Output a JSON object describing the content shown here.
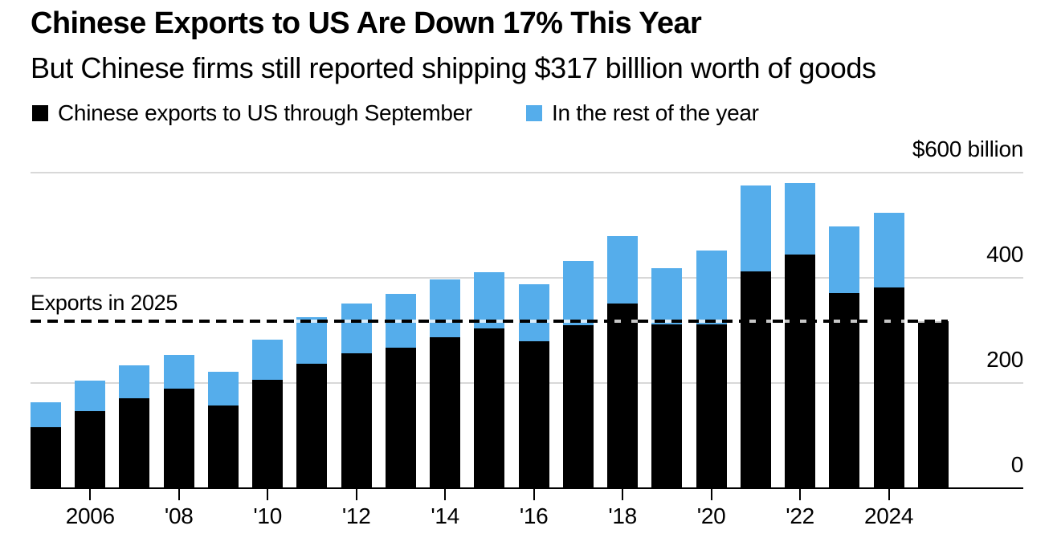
{
  "header": {
    "title": "Chinese Exports to US Are Down 17% This Year",
    "subtitle": "But Chinese firms still reported shipping $317 billlion worth of goods"
  },
  "legend": {
    "items": [
      {
        "label": "Chinese exports to US through September",
        "color": "#000000"
      },
      {
        "label": "In the rest of the year",
        "color": "#55ADEB"
      }
    ]
  },
  "chart_data": {
    "type": "bar",
    "stacked": true,
    "title": "Chinese Exports to US Are Down 17% This Year",
    "subtitle": "But Chinese firms still reported shipping $317 billlion worth of goods",
    "unit": "$ billion",
    "ylim": [
      0,
      600
    ],
    "grid": true,
    "y_gridlines": [
      200,
      400,
      600
    ],
    "y_axis_labels": [
      {
        "value": 600,
        "label": "$600 billion"
      },
      {
        "value": 400,
        "label": "400"
      },
      {
        "value": 200,
        "label": "200"
      },
      {
        "value": 0,
        "label": "0"
      }
    ],
    "legend_position": "top",
    "categories": [
      2005,
      2006,
      2007,
      2008,
      2009,
      2010,
      2011,
      2012,
      2013,
      2014,
      2015,
      2016,
      2017,
      2018,
      2019,
      2020,
      2021,
      2022,
      2023,
      2024,
      2025
    ],
    "series": [
      {
        "name": "Chinese exports to US through September",
        "color": "#000000",
        "values": [
          116,
          146,
          171,
          189,
          158,
          206,
          236,
          257,
          267,
          287,
          304,
          280,
          310,
          351,
          311,
          312,
          412,
          445,
          371,
          381,
          317
        ]
      },
      {
        "name": "In the rest of the year",
        "color": "#55ADEB",
        "values": [
          47,
          58,
          62,
          64,
          63,
          77,
          89,
          94,
          102,
          110,
          106,
          108,
          122,
          128,
          108,
          140,
          164,
          135,
          127,
          143,
          0
        ]
      }
    ],
    "totals": [
      163,
      204,
      233,
      253,
      221,
      283,
      325,
      351,
      369,
      397,
      410,
      388,
      432,
      479,
      419,
      452,
      576,
      580,
      498,
      524,
      317
    ],
    "annotation_line": {
      "label": "Exports in 2025",
      "value": 317,
      "style": "dashed"
    },
    "x_ticks": [
      {
        "year": 2006,
        "label": "2006"
      },
      {
        "year": 2008,
        "label": "'08"
      },
      {
        "year": 2010,
        "label": "'10"
      },
      {
        "year": 2012,
        "label": "'12"
      },
      {
        "year": 2014,
        "label": "'14"
      },
      {
        "year": 2016,
        "label": "'16"
      },
      {
        "year": 2018,
        "label": "'18"
      },
      {
        "year": 2020,
        "label": "'20"
      },
      {
        "year": 2022,
        "label": "'22"
      },
      {
        "year": 2024,
        "label": "2024"
      }
    ]
  }
}
